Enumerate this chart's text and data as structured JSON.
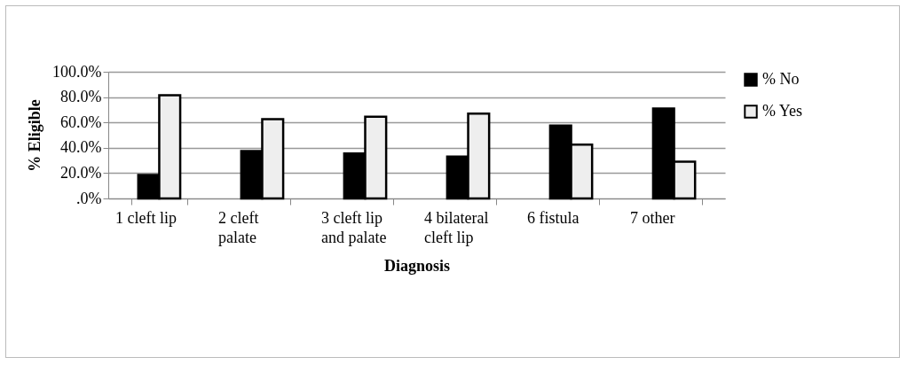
{
  "chart_data": {
    "type": "bar",
    "xlabel": "Diagnosis",
    "ylabel": "% Eligible",
    "categories": [
      "1 cleft lip",
      "2 cleft palate",
      "3 cleft lip and palate",
      "4 bilateral cleft lip",
      "6 fistula",
      "7 other"
    ],
    "series": [
      {
        "name": "% No",
        "color": "#000000",
        "values": [
          18.6,
          37.4,
          35.5,
          33.0,
          57.5,
          71.0
        ]
      },
      {
        "name": "% Yes",
        "color": "#eeeeee",
        "values": [
          81.4,
          62.6,
          64.5,
          67.0,
          42.5,
          29.0
        ]
      }
    ],
    "ylim": [
      0,
      100
    ],
    "yticks": [
      {
        "value": 0,
        "label": ".0%"
      },
      {
        "value": 20,
        "label": "20.0%"
      },
      {
        "value": 40,
        "label": "40.0%"
      },
      {
        "value": 60,
        "label": "60.0%"
      },
      {
        "value": 80,
        "label": "80.0%"
      },
      {
        "value": 100,
        "label": "100.0%"
      }
    ],
    "grid": "y",
    "legend": "right"
  }
}
